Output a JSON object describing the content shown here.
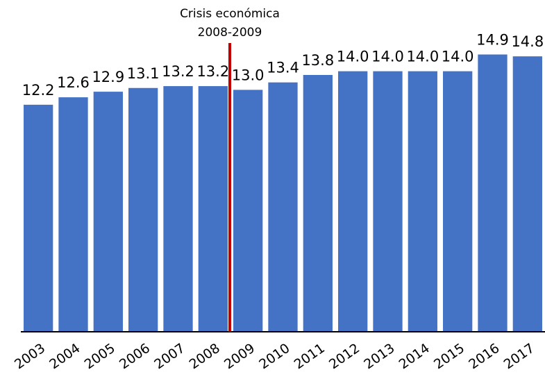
{
  "chart_data": {
    "type": "bar",
    "categories": [
      "2003",
      "2004",
      "2005",
      "2006",
      "2007",
      "2008",
      "2009",
      "2010",
      "2011",
      "2012",
      "2013",
      "2014",
      "2015",
      "2016",
      "2017"
    ],
    "values": [
      12.2,
      12.6,
      12.9,
      13.1,
      13.2,
      13.2,
      13.0,
      13.4,
      13.8,
      14.0,
      14.0,
      14.0,
      14.0,
      14.9,
      14.8
    ],
    "value_labels": [
      "12.2",
      "12.6",
      "12.9",
      "13.1",
      "13.2",
      "13.2",
      "13.0",
      "13.4",
      "13.8",
      "14.0",
      "14.0",
      "14.0",
      "14.0",
      "14.9",
      "14.8"
    ],
    "color": "#4472c4",
    "ylim": [
      0,
      16
    ],
    "annotation": {
      "text": [
        "Crisis económica",
        "2008-2009"
      ],
      "color": "#c00000"
    }
  }
}
